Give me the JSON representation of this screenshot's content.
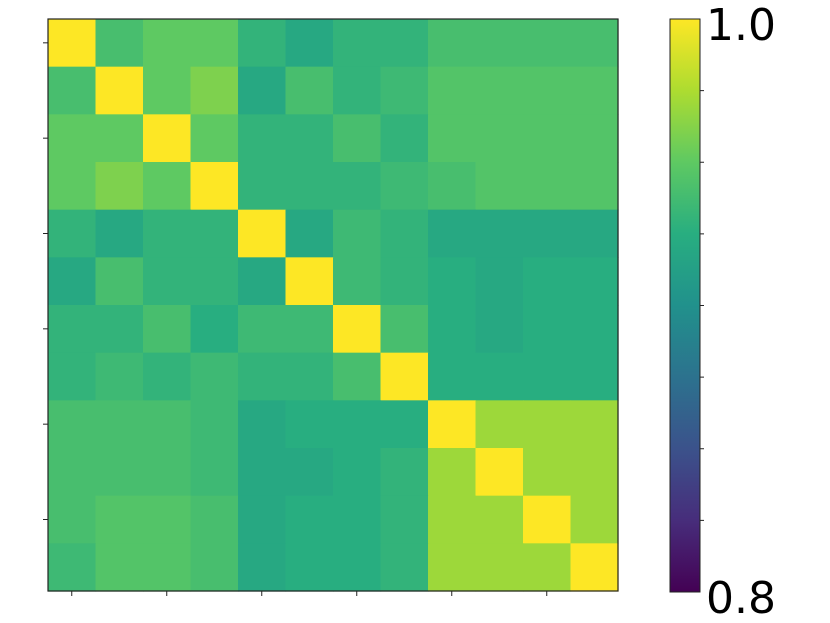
{
  "chart_data": {
    "type": "heatmap",
    "title": "",
    "xlabel": "",
    "ylabel": "",
    "x_tick_labels": [],
    "y_tick_labels": [],
    "rows": 12,
    "cols": 12,
    "values": [
      [
        1.0,
        0.94,
        0.95,
        0.95,
        0.93,
        0.92,
        0.93,
        0.93,
        0.94,
        0.94,
        0.94,
        0.94
      ],
      [
        0.94,
        1.0,
        0.95,
        0.96,
        0.92,
        0.94,
        0.93,
        0.935,
        0.945,
        0.945,
        0.945,
        0.945
      ],
      [
        0.95,
        0.95,
        1.0,
        0.95,
        0.93,
        0.93,
        0.94,
        0.93,
        0.945,
        0.945,
        0.945,
        0.945
      ],
      [
        0.95,
        0.96,
        0.95,
        1.0,
        0.93,
        0.93,
        0.93,
        0.935,
        0.94,
        0.945,
        0.945,
        0.945
      ],
      [
        0.93,
        0.92,
        0.93,
        0.93,
        1.0,
        0.92,
        0.935,
        0.93,
        0.92,
        0.92,
        0.92,
        0.92
      ],
      [
        0.92,
        0.94,
        0.93,
        0.93,
        0.92,
        1.0,
        0.935,
        0.93,
        0.925,
        0.92,
        0.925,
        0.925
      ],
      [
        0.93,
        0.93,
        0.94,
        0.925,
        0.935,
        0.935,
        1.0,
        0.94,
        0.925,
        0.92,
        0.925,
        0.925
      ],
      [
        0.93,
        0.935,
        0.93,
        0.935,
        0.93,
        0.93,
        0.94,
        1.0,
        0.925,
        0.925,
        0.925,
        0.925
      ],
      [
        0.94,
        0.94,
        0.94,
        0.935,
        0.92,
        0.925,
        0.925,
        0.925,
        1.0,
        0.97,
        0.97,
        0.97
      ],
      [
        0.94,
        0.94,
        0.94,
        0.935,
        0.92,
        0.92,
        0.925,
        0.93,
        0.97,
        1.0,
        0.97,
        0.97
      ],
      [
        0.94,
        0.945,
        0.945,
        0.94,
        0.92,
        0.925,
        0.925,
        0.93,
        0.97,
        0.97,
        1.0,
        0.97
      ],
      [
        0.935,
        0.945,
        0.945,
        0.94,
        0.92,
        0.925,
        0.925,
        0.93,
        0.97,
        0.97,
        0.97,
        1.0
      ]
    ],
    "colormap": "viridis",
    "vmin": 0.8,
    "vmax": 1.0,
    "colorbar": {
      "max_label": "1.0",
      "min_label": "0.8",
      "position": "right"
    },
    "grid": false,
    "legend": "none"
  }
}
